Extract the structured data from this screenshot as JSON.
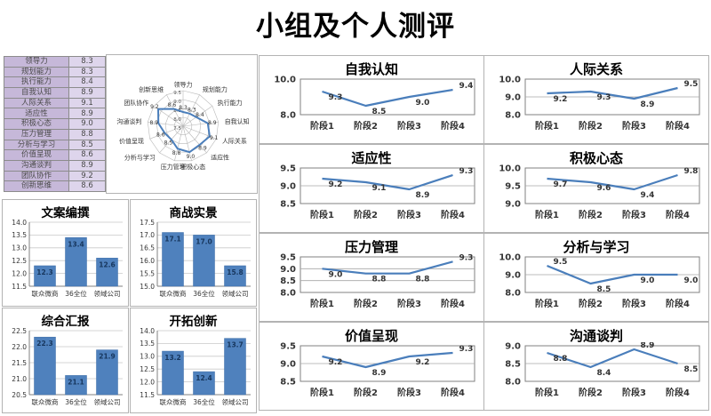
{
  "page": {
    "title": "小组及个人测评"
  },
  "colors": {
    "accent": "#4a7ebb",
    "bar": "#4f81bd",
    "bar_label": "#17365d",
    "grid": "#a6a6a6",
    "plot_border": "#808080",
    "table_label_bg": "#c6b8d9",
    "table_value_bg": "#ded5ec"
  },
  "table": {
    "rows": [
      {
        "label": "领导力",
        "value": "8.3"
      },
      {
        "label": "规划能力",
        "value": "8.3"
      },
      {
        "label": "执行能力",
        "value": "8.4"
      },
      {
        "label": "自我认知",
        "value": "8.9"
      },
      {
        "label": "人际关系",
        "value": "9.1"
      },
      {
        "label": "适应性",
        "value": "8.9"
      },
      {
        "label": "积极心态",
        "value": "9.0"
      },
      {
        "label": "压力管理",
        "value": "8.8"
      },
      {
        "label": "分析与学习",
        "value": "8.5"
      },
      {
        "label": "价值呈现",
        "value": "8.6"
      },
      {
        "label": "沟通谈判",
        "value": "8.9"
      },
      {
        "label": "团队协作",
        "value": "9.2"
      },
      {
        "label": "创新思维",
        "value": "8.6"
      }
    ]
  },
  "chart_data": [
    {
      "id": "radar-overview",
      "type": "radar",
      "title": "",
      "categories": [
        "领导力",
        "规划能力",
        "执行能力",
        "自我认知",
        "人际关系",
        "适应性",
        "积极心态",
        "压力管理",
        "分析与学习",
        "价值呈现",
        "沟通谈判",
        "团队协作",
        "创新思维"
      ],
      "values": [
        8.3,
        8.3,
        8.4,
        8.9,
        9.1,
        8.9,
        9.0,
        8.8,
        8.5,
        8.6,
        8.9,
        9.2,
        8.6
      ],
      "rlim": [
        7.5,
        9.5
      ],
      "rticks": [
        7.5,
        8.0,
        8.5,
        9.0,
        9.5
      ],
      "grid": true,
      "legend": "none"
    },
    {
      "id": "bar-copywriting",
      "type": "bar",
      "title": "文案编撰",
      "categories": [
        "联众微商",
        "36全位",
        "领域公司"
      ],
      "values": [
        12.3,
        13.4,
        12.6
      ],
      "yticks": [
        11.5,
        12.0,
        12.5,
        13.0,
        13.5,
        14.0
      ],
      "ylim": [
        11.5,
        14.0
      ],
      "grid": true
    },
    {
      "id": "bar-business-war",
      "type": "bar",
      "title": "商战实景",
      "categories": [
        "联众微商",
        "36全位",
        "领域公司"
      ],
      "values": [
        17.1,
        17.0,
        15.8
      ],
      "yticks": [
        15.0,
        15.5,
        16.0,
        16.5,
        17.0,
        17.5
      ],
      "ylim": [
        15.0,
        17.5
      ],
      "grid": true
    },
    {
      "id": "bar-report",
      "type": "bar",
      "title": "综合汇报",
      "categories": [
        "联众微商",
        "36全位",
        "领域公司"
      ],
      "values": [
        22.3,
        21.1,
        21.9
      ],
      "yticks": [
        20.5,
        21.0,
        21.5,
        22.0,
        22.5
      ],
      "ylim": [
        20.5,
        22.5
      ],
      "grid": true
    },
    {
      "id": "bar-innovation",
      "type": "bar",
      "title": "开拓创新",
      "categories": [
        "联众微商",
        "36全位",
        "领域公司"
      ],
      "values": [
        13.2,
        12.4,
        13.7
      ],
      "yticks": [
        11.5,
        12.0,
        12.5,
        13.0,
        13.5,
        14.0
      ],
      "ylim": [
        11.5,
        14.0
      ],
      "grid": true
    },
    {
      "id": "line-self-awareness",
      "type": "line",
      "title": "自我认知",
      "categories": [
        "阶段1",
        "阶段2",
        "阶段3",
        "阶段4"
      ],
      "values": [
        9.3,
        8.5,
        9.0,
        9.4
      ],
      "yticks": [
        8.0,
        10.0
      ],
      "ylim": [
        8.0,
        10.0
      ],
      "grid": true
    },
    {
      "id": "line-interpersonal",
      "type": "line",
      "title": "人际关系",
      "categories": [
        "阶段1",
        "阶段2",
        "阶段3",
        "阶段4"
      ],
      "values": [
        9.2,
        9.3,
        8.9,
        9.5
      ],
      "yticks": [
        8.0,
        9.0,
        10.0
      ],
      "ylim": [
        8.0,
        10.0
      ],
      "grid": true
    },
    {
      "id": "line-adaptability",
      "type": "line",
      "title": "适应性",
      "categories": [
        "阶段1",
        "阶段2",
        "阶段3",
        "阶段4"
      ],
      "values": [
        9.2,
        9.1,
        8.9,
        9.3
      ],
      "yticks": [
        8.5,
        9.0,
        9.5
      ],
      "ylim": [
        8.5,
        9.5
      ],
      "grid": true
    },
    {
      "id": "line-positive-mindset",
      "type": "line",
      "title": "积极心态",
      "categories": [
        "阶段1",
        "阶段2",
        "阶段3",
        "阶段4"
      ],
      "values": [
        9.7,
        9.6,
        9.4,
        9.8
      ],
      "yticks": [
        9.0,
        9.5,
        10.0
      ],
      "ylim": [
        9.0,
        10.0
      ],
      "grid": true
    },
    {
      "id": "line-stress-management",
      "type": "line",
      "title": "压力管理",
      "categories": [
        "阶段1",
        "阶段2",
        "阶段3",
        "阶段4"
      ],
      "values": [
        9.0,
        8.8,
        8.8,
        9.3
      ],
      "yticks": [
        8.0,
        8.5,
        9.0,
        9.5
      ],
      "ylim": [
        8.0,
        9.5
      ],
      "grid": true
    },
    {
      "id": "line-analysis-learning",
      "type": "line",
      "title": "分析与学习",
      "categories": [
        "阶段1",
        "阶段2",
        "阶段3",
        "阶段4"
      ],
      "values": [
        9.5,
        8.5,
        9.0,
        9.0
      ],
      "yticks": [
        8.0,
        9.0,
        10.0
      ],
      "ylim": [
        8.0,
        10.0
      ],
      "grid": true
    },
    {
      "id": "line-value-presentation",
      "type": "line",
      "title": "价值呈现",
      "categories": [
        "阶段1",
        "阶段2",
        "阶段3",
        "阶段4"
      ],
      "values": [
        9.2,
        8.9,
        9.2,
        9.3
      ],
      "yticks": [
        8.5,
        9.0,
        9.5
      ],
      "ylim": [
        8.5,
        9.5
      ],
      "grid": true
    },
    {
      "id": "line-communication",
      "type": "line",
      "title": "沟通谈判",
      "categories": [
        "阶段1",
        "阶段2",
        "阶段3",
        "阶段4"
      ],
      "values": [
        8.8,
        8.4,
        8.9,
        8.5
      ],
      "yticks": [
        8.0,
        8.5,
        9.0
      ],
      "ylim": [
        8.0,
        9.0
      ],
      "grid": true
    }
  ]
}
